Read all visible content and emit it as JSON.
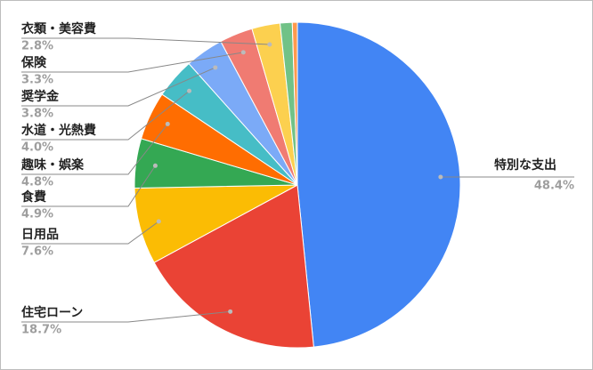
{
  "chart_data": {
    "type": "pie",
    "categories": [
      "特別な支出",
      "住宅ローン",
      "日用品",
      "食費",
      "趣味・娯楽",
      "水道・光熱費",
      "奨学金",
      "保険",
      "衣類・美容費",
      null,
      null
    ],
    "values": [
      48.4,
      18.7,
      7.6,
      4.9,
      4.8,
      4.0,
      3.8,
      3.3,
      2.8,
      1.2,
      0.5
    ],
    "value_labels": [
      "48.4%",
      "18.7%",
      "7.6%",
      "4.9%",
      "4.8%",
      "4.0%",
      "3.8%",
      "3.3%",
      "2.8%",
      null,
      null
    ],
    "colors": [
      "#4285f4",
      "#ea4335",
      "#fbbc04",
      "#34a853",
      "#ff6d01",
      "#46bdc6",
      "#7baaf7",
      "#f07b72",
      "#fcd04f",
      "#71c287",
      "#ff994d"
    ]
  }
}
